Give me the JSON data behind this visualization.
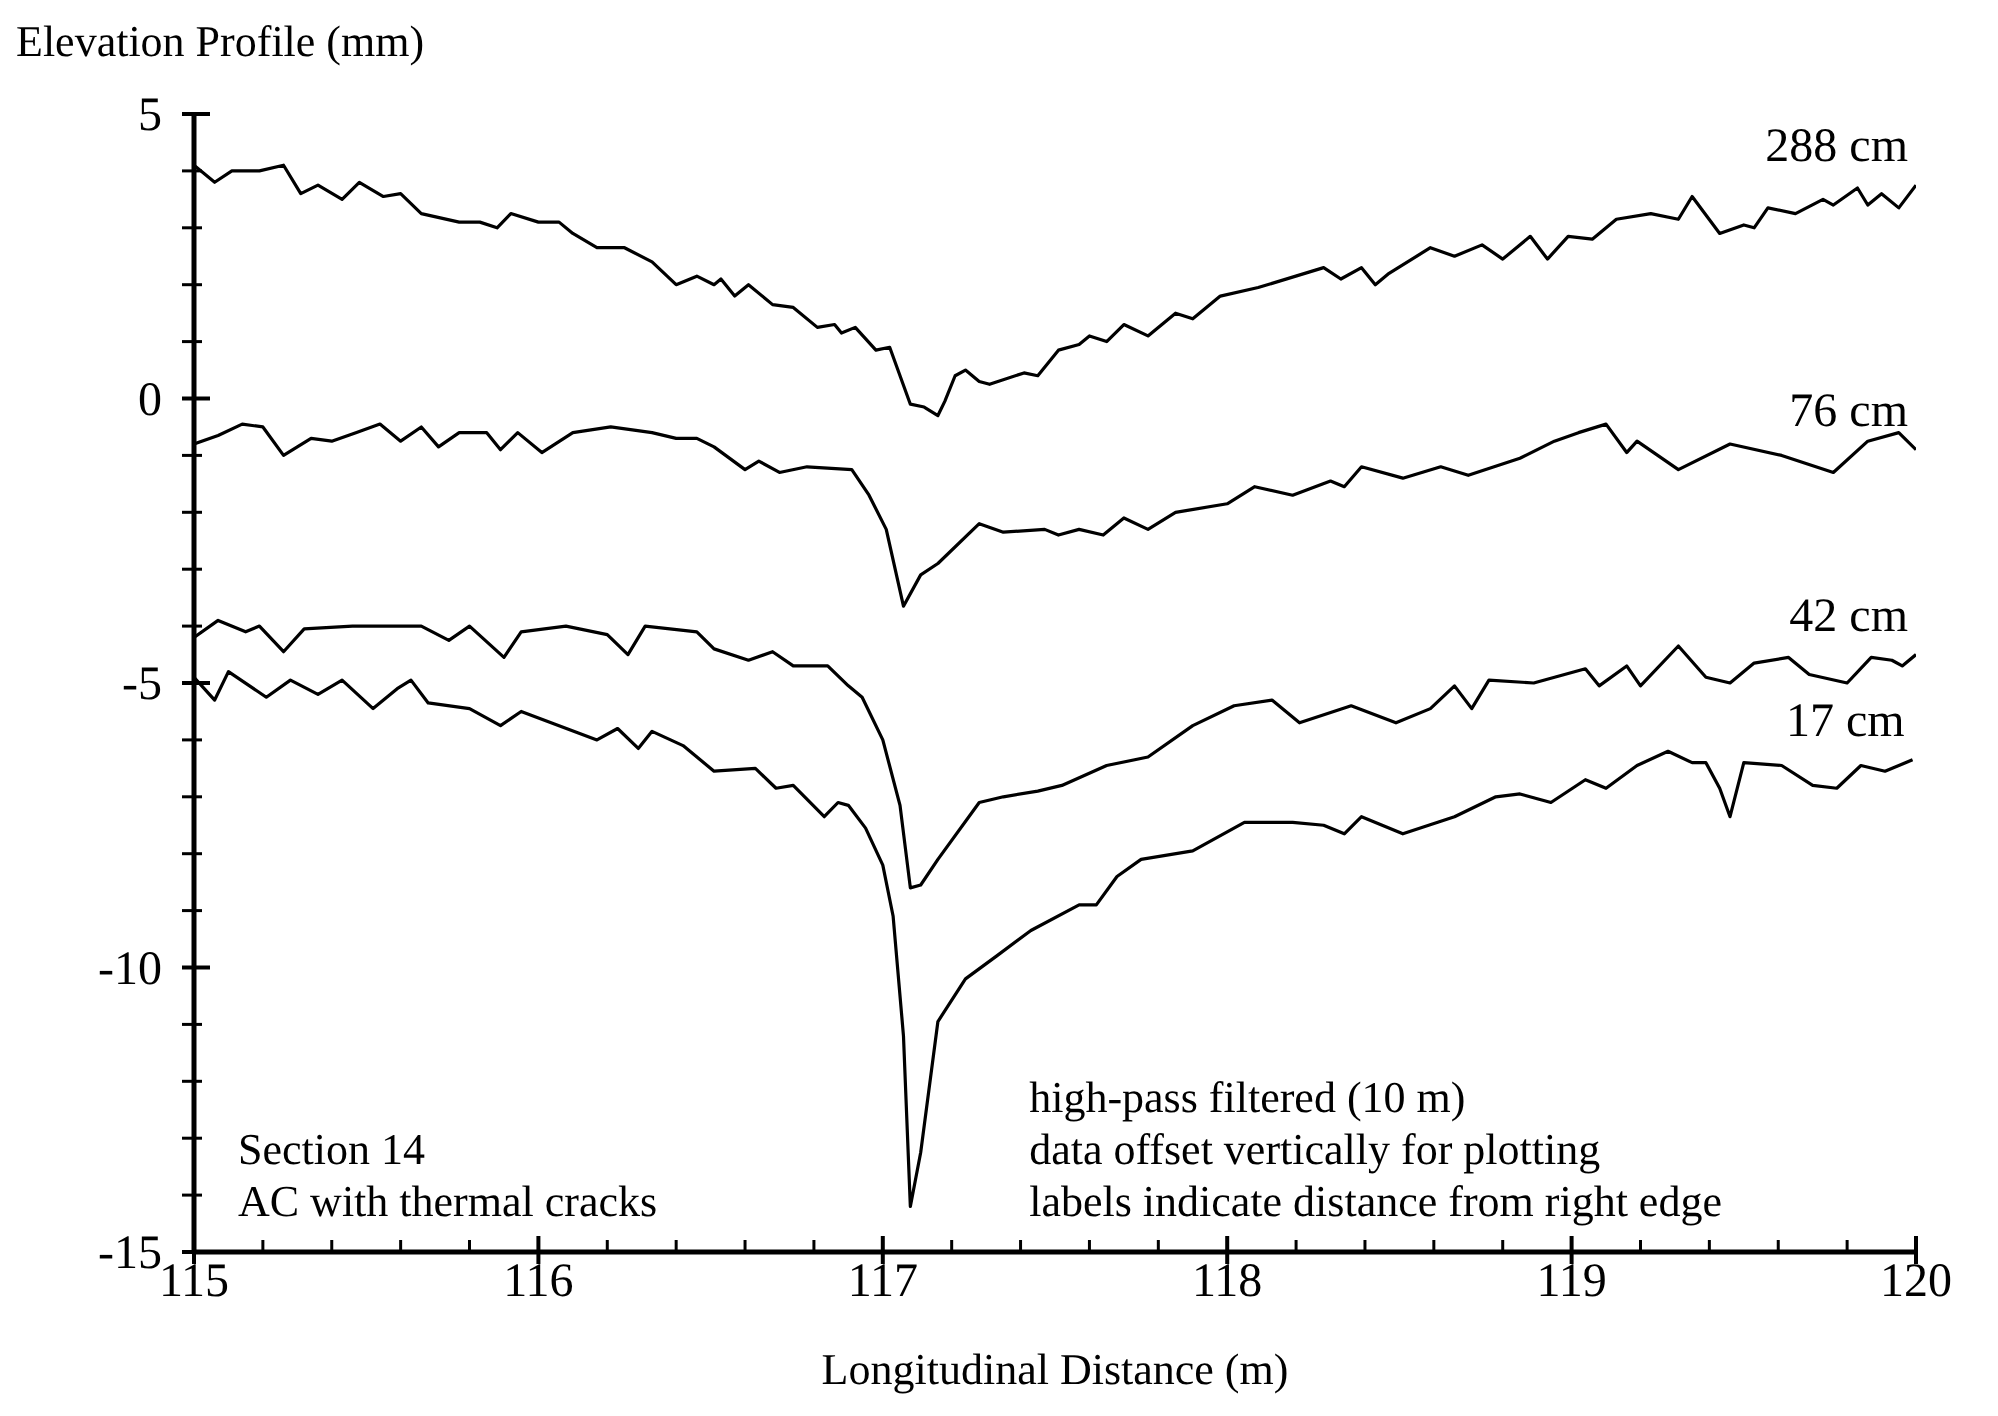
{
  "chart_data": {
    "type": "line",
    "ylabel": "Elevation Profile (mm)",
    "xlabel": "Longitudinal Distance (m)",
    "xlim": [
      115,
      120
    ],
    "ylim": [
      -15,
      5
    ],
    "xticks": [
      115,
      {
        "value": 115.2,
        "label": null
      },
      {
        "value": 115.4,
        "label": null
      },
      {
        "value": 115.6,
        "label": null
      },
      {
        "value": 115.8,
        "label": null
      },
      116,
      {
        "value": 116.2,
        "label": null
      },
      {
        "value": 116.4,
        "label": null
      },
      {
        "value": 116.6,
        "label": null
      },
      {
        "value": 116.8,
        "label": null
      },
      117,
      {
        "value": 117.2,
        "label": null
      },
      {
        "value": 117.4,
        "label": null
      },
      {
        "value": 117.6,
        "label": null
      },
      {
        "value": 117.8,
        "label": null
      },
      118,
      {
        "value": 118.2,
        "label": null
      },
      {
        "value": 118.4,
        "label": null
      },
      {
        "value": 118.6,
        "label": null
      },
      {
        "value": 118.8,
        "label": null
      },
      119,
      {
        "value": 119.2,
        "label": null
      },
      {
        "value": 119.4,
        "label": null
      },
      {
        "value": 119.6,
        "label": null
      },
      {
        "value": 119.8,
        "label": null
      },
      120
    ],
    "yticks": [
      -15,
      {
        "value": -14,
        "label": null
      },
      {
        "value": -13,
        "label": null
      },
      {
        "value": -12,
        "label": null
      },
      {
        "value": -11,
        "label": null
      },
      -10,
      {
        "value": -9,
        "label": null
      },
      {
        "value": -8,
        "label": null
      },
      {
        "value": -7,
        "label": null
      },
      {
        "value": -6,
        "label": null
      },
      -5,
      {
        "value": -4,
        "label": null
      },
      {
        "value": -3,
        "label": null
      },
      {
        "value": -2,
        "label": null
      },
      {
        "value": -1,
        "label": null
      },
      0,
      {
        "value": 1,
        "label": null
      },
      {
        "value": 2,
        "label": null
      },
      {
        "value": 3,
        "label": null
      },
      {
        "value": 4,
        "label": null
      },
      5
    ],
    "grid": false,
    "legend": false,
    "marker": "none",
    "line_style": "solid",
    "annotations": [
      "Section 14\nAC with thermal cracks",
      "high-pass filtered (10 m)\ndata offset vertically for plotting\nlabels indicate distance from right edge"
    ],
    "series": [
      {
        "name": "288 cm",
        "color": "#000000",
        "x": [
          115.0,
          115.06,
          115.11,
          115.19,
          115.26,
          115.31,
          115.36,
          115.43,
          115.48,
          115.55,
          115.6,
          115.66,
          115.77,
          115.83,
          115.88,
          115.92,
          116.0,
          116.06,
          116.1,
          116.17,
          116.25,
          116.33,
          116.4,
          116.46,
          116.51,
          116.53,
          116.57,
          116.61,
          116.68,
          116.74,
          116.81,
          116.86,
          116.88,
          116.92,
          116.98,
          117.02,
          117.08,
          117.12,
          117.16,
          117.18,
          117.21,
          117.24,
          117.28,
          117.31,
          117.41,
          117.45,
          117.51,
          117.57,
          117.6,
          117.65,
          117.7,
          117.77,
          117.85,
          117.9,
          117.98,
          118.09,
          118.28,
          118.33,
          118.39,
          118.43,
          118.47,
          118.59,
          118.66,
          118.74,
          118.8,
          118.88,
          118.93,
          118.99,
          119.06,
          119.13,
          119.23,
          119.31,
          119.35,
          119.43,
          119.5,
          119.53,
          119.57,
          119.65,
          119.73,
          119.76,
          119.83,
          119.86,
          119.9,
          119.95,
          120.0
        ],
        "values": [
          4.1,
          3.8,
          4.0,
          4.0,
          4.1,
          3.6,
          3.75,
          3.5,
          3.8,
          3.55,
          3.6,
          3.25,
          3.1,
          3.1,
          3.0,
          3.25,
          3.1,
          3.1,
          2.9,
          2.65,
          2.65,
          2.4,
          2.0,
          2.15,
          2.0,
          2.1,
          1.8,
          2.0,
          1.65,
          1.6,
          1.25,
          1.3,
          1.15,
          1.25,
          0.85,
          0.9,
          -0.1,
          -0.15,
          -0.3,
          -0.05,
          0.4,
          0.5,
          0.3,
          0.25,
          0.45,
          0.4,
          0.85,
          0.95,
          1.1,
          1.0,
          1.3,
          1.1,
          1.5,
          1.4,
          1.8,
          1.95,
          2.3,
          2.1,
          2.3,
          2.0,
          2.2,
          2.65,
          2.5,
          2.7,
          2.45,
          2.85,
          2.45,
          2.85,
          2.8,
          3.15,
          3.25,
          3.15,
          3.55,
          2.9,
          3.05,
          3.0,
          3.35,
          3.25,
          3.5,
          3.4,
          3.7,
          3.4,
          3.6,
          3.35,
          3.75
        ]
      },
      {
        "name": "76 cm",
        "color": "#000000",
        "x": [
          115.0,
          115.07,
          115.14,
          115.2,
          115.26,
          115.34,
          115.4,
          115.47,
          115.54,
          115.6,
          115.66,
          115.71,
          115.77,
          115.85,
          115.89,
          115.94,
          116.01,
          116.1,
          116.21,
          116.33,
          116.4,
          116.46,
          116.51,
          116.6,
          116.64,
          116.7,
          116.78,
          116.91,
          116.96,
          117.01,
          117.06,
          117.11,
          117.16,
          117.28,
          117.35,
          117.47,
          117.51,
          117.57,
          117.64,
          117.7,
          117.77,
          117.85,
          118.0,
          118.08,
          118.19,
          118.3,
          118.34,
          118.39,
          118.51,
          118.62,
          118.7,
          118.85,
          118.95,
          119.02,
          119.1,
          119.16,
          119.19,
          119.31,
          119.46,
          119.61,
          119.76,
          119.86,
          119.95,
          120.0
        ],
        "values": [
          -0.8,
          -0.65,
          -0.45,
          -0.5,
          -1.0,
          -0.7,
          -0.75,
          -0.6,
          -0.45,
          -0.75,
          -0.5,
          -0.85,
          -0.6,
          -0.6,
          -0.9,
          -0.6,
          -0.95,
          -0.6,
          -0.5,
          -0.6,
          -0.7,
          -0.7,
          -0.85,
          -1.25,
          -1.1,
          -1.3,
          -1.2,
          -1.25,
          -1.7,
          -2.3,
          -3.65,
          -3.1,
          -2.9,
          -2.2,
          -2.35,
          -2.3,
          -2.4,
          -2.3,
          -2.4,
          -2.1,
          -2.3,
          -2.0,
          -1.85,
          -1.55,
          -1.7,
          -1.45,
          -1.55,
          -1.2,
          -1.4,
          -1.2,
          -1.35,
          -1.05,
          -0.75,
          -0.6,
          -0.45,
          -0.95,
          -0.75,
          -1.25,
          -0.8,
          -1.0,
          -1.3,
          -0.75,
          -0.6,
          -0.9
        ]
      },
      {
        "name": "42 cm",
        "color": "#000000",
        "x": [
          115.0,
          115.07,
          115.15,
          115.19,
          115.26,
          115.32,
          115.46,
          115.66,
          115.74,
          115.8,
          115.9,
          115.95,
          116.08,
          116.2,
          116.26,
          116.31,
          116.46,
          116.51,
          116.61,
          116.68,
          116.74,
          116.84,
          116.9,
          116.94,
          117.0,
          117.05,
          117.08,
          117.11,
          117.16,
          117.28,
          117.35,
          117.45,
          117.52,
          117.65,
          117.77,
          117.9,
          118.02,
          118.13,
          118.21,
          118.36,
          118.49,
          118.59,
          118.66,
          118.71,
          118.76,
          118.89,
          119.04,
          119.08,
          119.16,
          119.2,
          119.31,
          119.39,
          119.46,
          119.53,
          119.63,
          119.69,
          119.8,
          119.87,
          119.93,
          119.96,
          120.0
        ],
        "values": [
          -4.2,
          -3.9,
          -4.1,
          -4.0,
          -4.45,
          -4.05,
          -4.0,
          -4.0,
          -4.25,
          -4.0,
          -4.55,
          -4.1,
          -4.0,
          -4.15,
          -4.5,
          -4.0,
          -4.1,
          -4.4,
          -4.6,
          -4.45,
          -4.7,
          -4.7,
          -5.05,
          -5.25,
          -6.0,
          -7.15,
          -8.6,
          -8.55,
          -8.1,
          -7.1,
          -7.0,
          -6.9,
          -6.8,
          -6.45,
          -6.3,
          -5.75,
          -5.4,
          -5.3,
          -5.7,
          -5.4,
          -5.7,
          -5.45,
          -5.05,
          -5.45,
          -4.95,
          -5.0,
          -4.75,
          -5.05,
          -4.7,
          -5.05,
          -4.35,
          -4.9,
          -5.0,
          -4.65,
          -4.55,
          -4.85,
          -5.0,
          -4.55,
          -4.6,
          -4.7,
          -4.5
        ]
      },
      {
        "name": "17 cm",
        "color": "#000000",
        "x": [
          115.0,
          115.06,
          115.1,
          115.21,
          115.28,
          115.36,
          115.43,
          115.52,
          115.59,
          115.63,
          115.68,
          115.8,
          115.89,
          115.95,
          116.06,
          116.17,
          116.23,
          116.29,
          116.33,
          116.42,
          116.51,
          116.63,
          116.69,
          116.74,
          116.83,
          116.87,
          116.9,
          116.95,
          117.0,
          117.03,
          117.06,
          117.08,
          117.11,
          117.16,
          117.24,
          117.33,
          117.43,
          117.57,
          117.62,
          117.68,
          117.75,
          117.9,
          118.05,
          118.19,
          118.28,
          118.34,
          118.39,
          118.51,
          118.66,
          118.78,
          118.85,
          118.94,
          119.04,
          119.1,
          119.19,
          119.28,
          119.35,
          119.39,
          119.43,
          119.46,
          119.5,
          119.61,
          119.7,
          119.77,
          119.84,
          119.91,
          119.99
        ],
        "values": [
          -4.9,
          -5.3,
          -4.8,
          -5.25,
          -4.95,
          -5.2,
          -4.95,
          -5.45,
          -5.1,
          -4.95,
          -5.35,
          -5.45,
          -5.75,
          -5.5,
          -5.75,
          -6.0,
          -5.8,
          -6.15,
          -5.85,
          -6.1,
          -6.55,
          -6.5,
          -6.85,
          -6.8,
          -7.35,
          -7.1,
          -7.15,
          -7.55,
          -8.2,
          -9.1,
          -11.2,
          -14.2,
          -13.25,
          -10.95,
          -10.2,
          -9.8,
          -9.35,
          -8.9,
          -8.9,
          -8.4,
          -8.1,
          -7.95,
          -7.45,
          -7.45,
          -7.5,
          -7.65,
          -7.35,
          -7.65,
          -7.35,
          -7.0,
          -6.95,
          -7.1,
          -6.7,
          -6.85,
          -6.45,
          -6.2,
          -6.4,
          -6.4,
          -6.85,
          -7.35,
          -6.4,
          -6.45,
          -6.8,
          -6.85,
          -6.45,
          -6.55,
          -6.35
        ]
      }
    ]
  }
}
